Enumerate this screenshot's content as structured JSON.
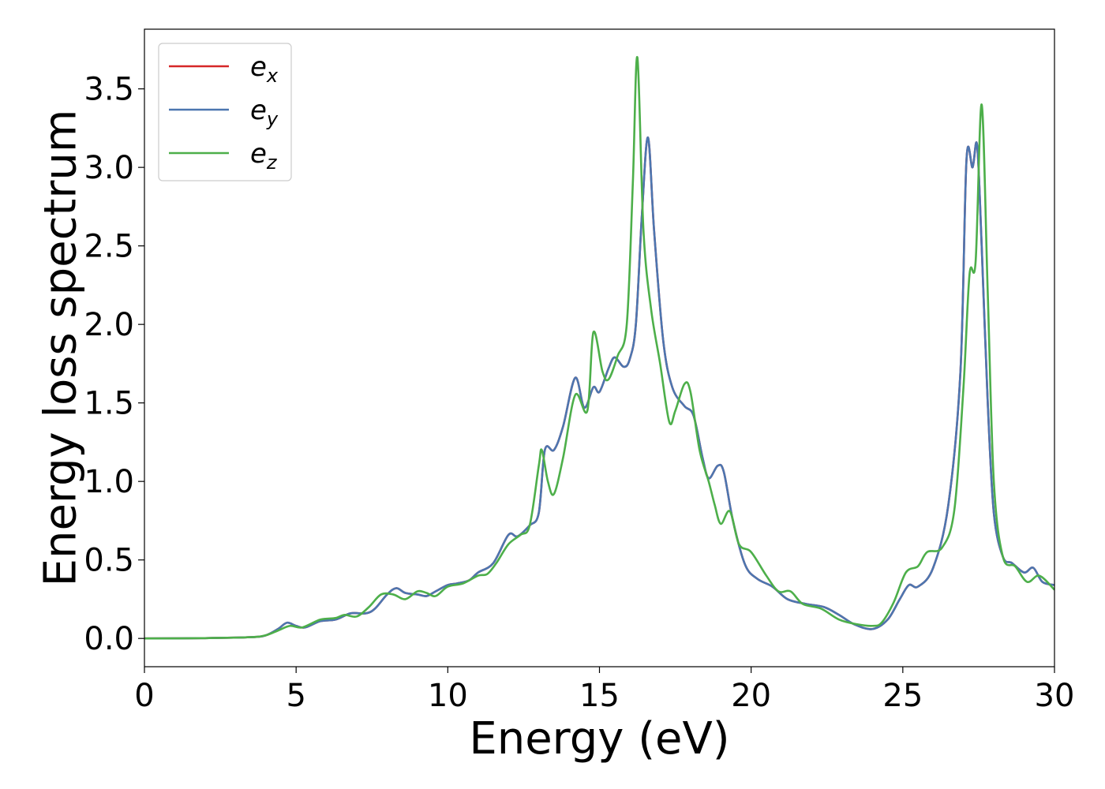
{
  "chart_data": {
    "type": "line",
    "title": "",
    "xlabel": "Energy (eV)",
    "ylabel": "Energy loss spectrum",
    "xlim": [
      0,
      30
    ],
    "ylim": [
      -0.18,
      3.88
    ],
    "xticks": [
      0,
      5,
      10,
      15,
      20,
      25,
      30
    ],
    "yticks": [
      0.0,
      0.5,
      1.0,
      1.5,
      2.0,
      2.5,
      3.0,
      3.5
    ],
    "xtick_labels": [
      "0",
      "5",
      "10",
      "15",
      "20",
      "25",
      "30"
    ],
    "ytick_labels": [
      "0.0",
      "0.5",
      "1.0",
      "1.5",
      "2.0",
      "2.5",
      "3.0",
      "3.5"
    ],
    "grid": false,
    "legend_position": "top-left",
    "series": [
      {
        "name": "e",
        "sub": "x",
        "color": "#d62728",
        "points": [
          [
            0,
            0
          ],
          [
            2,
            0.002
          ],
          [
            3.5,
            0.008
          ],
          [
            4,
            0.02
          ],
          [
            4.4,
            0.06
          ],
          [
            4.7,
            0.1
          ],
          [
            5,
            0.08
          ],
          [
            5.3,
            0.07
          ],
          [
            5.8,
            0.11
          ],
          [
            6.3,
            0.12
          ],
          [
            6.8,
            0.16
          ],
          [
            7.3,
            0.16
          ],
          [
            7.6,
            0.19
          ],
          [
            8,
            0.28
          ],
          [
            8.3,
            0.32
          ],
          [
            8.6,
            0.29
          ],
          [
            9,
            0.28
          ],
          [
            9.3,
            0.27
          ],
          [
            9.6,
            0.3
          ],
          [
            10,
            0.34
          ],
          [
            10.3,
            0.35
          ],
          [
            10.7,
            0.37
          ],
          [
            11,
            0.42
          ],
          [
            11.5,
            0.48
          ],
          [
            12,
            0.66
          ],
          [
            12.3,
            0.65
          ],
          [
            12.7,
            0.72
          ],
          [
            13,
            0.8
          ],
          [
            13.2,
            1.2
          ],
          [
            13.5,
            1.2
          ],
          [
            13.8,
            1.35
          ],
          [
            14.2,
            1.66
          ],
          [
            14.5,
            1.47
          ],
          [
            14.8,
            1.6
          ],
          [
            15,
            1.57
          ],
          [
            15.3,
            1.72
          ],
          [
            15.5,
            1.79
          ],
          [
            15.8,
            1.73
          ],
          [
            16,
            1.78
          ],
          [
            16.2,
            2.0
          ],
          [
            16.4,
            2.7
          ],
          [
            16.6,
            3.19
          ],
          [
            16.8,
            2.6
          ],
          [
            17.1,
            1.9
          ],
          [
            17.4,
            1.6
          ],
          [
            17.8,
            1.48
          ],
          [
            18.1,
            1.42
          ],
          [
            18.4,
            1.15
          ],
          [
            18.6,
            1.02
          ],
          [
            18.9,
            1.1
          ],
          [
            19.1,
            1.06
          ],
          [
            19.4,
            0.75
          ],
          [
            19.8,
            0.47
          ],
          [
            20.2,
            0.38
          ],
          [
            20.7,
            0.33
          ],
          [
            21.2,
            0.25
          ],
          [
            21.8,
            0.22
          ],
          [
            22.4,
            0.2
          ],
          [
            22.9,
            0.15
          ],
          [
            23.4,
            0.09
          ],
          [
            24,
            0.06
          ],
          [
            24.5,
            0.12
          ],
          [
            24.9,
            0.25
          ],
          [
            25.2,
            0.34
          ],
          [
            25.5,
            0.33
          ],
          [
            26,
            0.45
          ],
          [
            26.5,
            0.85
          ],
          [
            26.9,
            1.7
          ],
          [
            27.1,
            3.05
          ],
          [
            27.3,
            3.0
          ],
          [
            27.45,
            3.14
          ],
          [
            27.6,
            2.5
          ],
          [
            27.8,
            1.5
          ],
          [
            28,
            0.8
          ],
          [
            28.3,
            0.52
          ],
          [
            28.6,
            0.48
          ],
          [
            29,
            0.42
          ],
          [
            29.3,
            0.45
          ],
          [
            29.6,
            0.36
          ],
          [
            30,
            0.34
          ]
        ]
      },
      {
        "name": "e",
        "sub": "y",
        "color": "#4c76b0",
        "points": [
          [
            0,
            0
          ],
          [
            2,
            0.002
          ],
          [
            3.5,
            0.008
          ],
          [
            4,
            0.02
          ],
          [
            4.4,
            0.06
          ],
          [
            4.7,
            0.1
          ],
          [
            5,
            0.08
          ],
          [
            5.3,
            0.07
          ],
          [
            5.8,
            0.11
          ],
          [
            6.3,
            0.12
          ],
          [
            6.8,
            0.16
          ],
          [
            7.3,
            0.16
          ],
          [
            7.6,
            0.19
          ],
          [
            8,
            0.28
          ],
          [
            8.3,
            0.32
          ],
          [
            8.6,
            0.29
          ],
          [
            9,
            0.28
          ],
          [
            9.3,
            0.27
          ],
          [
            9.6,
            0.3
          ],
          [
            10,
            0.34
          ],
          [
            10.3,
            0.35
          ],
          [
            10.7,
            0.37
          ],
          [
            11,
            0.42
          ],
          [
            11.5,
            0.48
          ],
          [
            12,
            0.66
          ],
          [
            12.3,
            0.65
          ],
          [
            12.7,
            0.72
          ],
          [
            13,
            0.8
          ],
          [
            13.2,
            1.2
          ],
          [
            13.5,
            1.2
          ],
          [
            13.8,
            1.35
          ],
          [
            14.2,
            1.66
          ],
          [
            14.5,
            1.47
          ],
          [
            14.8,
            1.6
          ],
          [
            15,
            1.57
          ],
          [
            15.3,
            1.72
          ],
          [
            15.5,
            1.79
          ],
          [
            15.8,
            1.73
          ],
          [
            16,
            1.78
          ],
          [
            16.2,
            2.0
          ],
          [
            16.4,
            2.7
          ],
          [
            16.6,
            3.19
          ],
          [
            16.8,
            2.6
          ],
          [
            17.1,
            1.9
          ],
          [
            17.4,
            1.6
          ],
          [
            17.8,
            1.48
          ],
          [
            18.1,
            1.42
          ],
          [
            18.4,
            1.15
          ],
          [
            18.6,
            1.02
          ],
          [
            18.9,
            1.1
          ],
          [
            19.1,
            1.06
          ],
          [
            19.4,
            0.75
          ],
          [
            19.8,
            0.47
          ],
          [
            20.2,
            0.38
          ],
          [
            20.7,
            0.33
          ],
          [
            21.2,
            0.25
          ],
          [
            21.8,
            0.22
          ],
          [
            22.4,
            0.2
          ],
          [
            22.9,
            0.15
          ],
          [
            23.4,
            0.09
          ],
          [
            24,
            0.06
          ],
          [
            24.5,
            0.12
          ],
          [
            24.9,
            0.25
          ],
          [
            25.2,
            0.34
          ],
          [
            25.5,
            0.33
          ],
          [
            26,
            0.45
          ],
          [
            26.5,
            0.85
          ],
          [
            26.9,
            1.7
          ],
          [
            27.1,
            3.05
          ],
          [
            27.3,
            3.0
          ],
          [
            27.45,
            3.14
          ],
          [
            27.6,
            2.5
          ],
          [
            27.8,
            1.5
          ],
          [
            28,
            0.8
          ],
          [
            28.3,
            0.52
          ],
          [
            28.6,
            0.48
          ],
          [
            29,
            0.42
          ],
          [
            29.3,
            0.45
          ],
          [
            29.6,
            0.36
          ],
          [
            30,
            0.34
          ]
        ]
      },
      {
        "name": "e",
        "sub": "z",
        "color": "#4daf4a",
        "points": [
          [
            0,
            0
          ],
          [
            2,
            0.002
          ],
          [
            3.5,
            0.008
          ],
          [
            4,
            0.02
          ],
          [
            4.4,
            0.05
          ],
          [
            4.8,
            0.08
          ],
          [
            5.2,
            0.07
          ],
          [
            5.8,
            0.12
          ],
          [
            6.3,
            0.13
          ],
          [
            6.6,
            0.15
          ],
          [
            7,
            0.14
          ],
          [
            7.4,
            0.2
          ],
          [
            7.8,
            0.28
          ],
          [
            8.2,
            0.28
          ],
          [
            8.6,
            0.25
          ],
          [
            9,
            0.3
          ],
          [
            9.3,
            0.29
          ],
          [
            9.6,
            0.27
          ],
          [
            10,
            0.33
          ],
          [
            10.5,
            0.35
          ],
          [
            11,
            0.4
          ],
          [
            11.3,
            0.41
          ],
          [
            11.6,
            0.48
          ],
          [
            12,
            0.6
          ],
          [
            12.4,
            0.66
          ],
          [
            12.7,
            0.72
          ],
          [
            13,
            1.1
          ],
          [
            13.1,
            1.2
          ],
          [
            13.3,
            1.0
          ],
          [
            13.5,
            0.92
          ],
          [
            13.8,
            1.15
          ],
          [
            14.2,
            1.55
          ],
          [
            14.6,
            1.45
          ],
          [
            14.8,
            1.95
          ],
          [
            15.1,
            1.7
          ],
          [
            15.3,
            1.65
          ],
          [
            15.6,
            1.8
          ],
          [
            15.9,
            2.0
          ],
          [
            16.1,
            2.9
          ],
          [
            16.25,
            3.7
          ],
          [
            16.45,
            2.6
          ],
          [
            16.7,
            2.1
          ],
          [
            17,
            1.75
          ],
          [
            17.3,
            1.38
          ],
          [
            17.5,
            1.45
          ],
          [
            17.8,
            1.62
          ],
          [
            18,
            1.57
          ],
          [
            18.3,
            1.2
          ],
          [
            18.6,
            1.0
          ],
          [
            18.8,
            0.85
          ],
          [
            19,
            0.73
          ],
          [
            19.3,
            0.81
          ],
          [
            19.6,
            0.6
          ],
          [
            20,
            0.55
          ],
          [
            20.5,
            0.4
          ],
          [
            20.9,
            0.3
          ],
          [
            21.3,
            0.3
          ],
          [
            21.7,
            0.22
          ],
          [
            22.3,
            0.19
          ],
          [
            22.9,
            0.12
          ],
          [
            23.5,
            0.09
          ],
          [
            24,
            0.08
          ],
          [
            24.3,
            0.1
          ],
          [
            24.7,
            0.23
          ],
          [
            25.1,
            0.42
          ],
          [
            25.5,
            0.46
          ],
          [
            25.8,
            0.55
          ],
          [
            26.3,
            0.58
          ],
          [
            26.7,
            0.82
          ],
          [
            27,
            1.6
          ],
          [
            27.2,
            2.32
          ],
          [
            27.4,
            2.4
          ],
          [
            27.6,
            3.4
          ],
          [
            27.8,
            2.2
          ],
          [
            28,
            1.0
          ],
          [
            28.3,
            0.52
          ],
          [
            28.7,
            0.46
          ],
          [
            29.1,
            0.36
          ],
          [
            29.5,
            0.4
          ],
          [
            30,
            0.31
          ]
        ]
      }
    ]
  }
}
